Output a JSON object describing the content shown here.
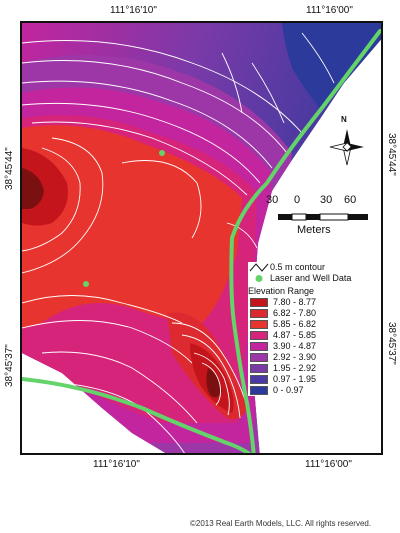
{
  "map": {
    "coordinates": {
      "top_left": "111°16'10\"",
      "top_right": "111°16'00\"",
      "bottom_left": "111°16'10\"",
      "bottom_right": "111°16'00\"",
      "left_upper": "38°45'44\"",
      "left_lower": "38°45'37\"",
      "right_upper": "38°45'44\"",
      "right_lower": "38°45'37\""
    },
    "north_arrow_label": "N",
    "scale_bar": {
      "ticks": [
        "30",
        "0",
        "30",
        "60"
      ],
      "units": "Meters"
    },
    "legend": {
      "contour_label": "0.5 m contour",
      "data_label": "Laser and Well Data",
      "range_title": "Elevation Range",
      "ranges": [
        {
          "label": "7.80 - 8.77",
          "color": "#c4141c"
        },
        {
          "label": "6.82 - 7.80",
          "color": "#dd2a30"
        },
        {
          "label": "5.85 - 6.82",
          "color": "#e8342e"
        },
        {
          "label": "4.87 - 5.85",
          "color": "#d6247a"
        },
        {
          "label": "3.90 - 4.87",
          "color": "#c2259e"
        },
        {
          "label": "2.92 - 3.90",
          "color": "#9d37a8"
        },
        {
          "label": "1.95 - 2.92",
          "color": "#7a3aa8"
        },
        {
          "label": "0.97 - 1.95",
          "color": "#4b3aa5"
        },
        {
          "label": "0 - 0.97",
          "color": "#2c3a9c"
        }
      ]
    },
    "colors": {
      "frame": "#111111",
      "contour": "#ffffff",
      "data_track": "#63d36a",
      "peak": "#7a1010"
    }
  },
  "copyright": "©2013 Real Earth Models, LLC. All rights reserved."
}
